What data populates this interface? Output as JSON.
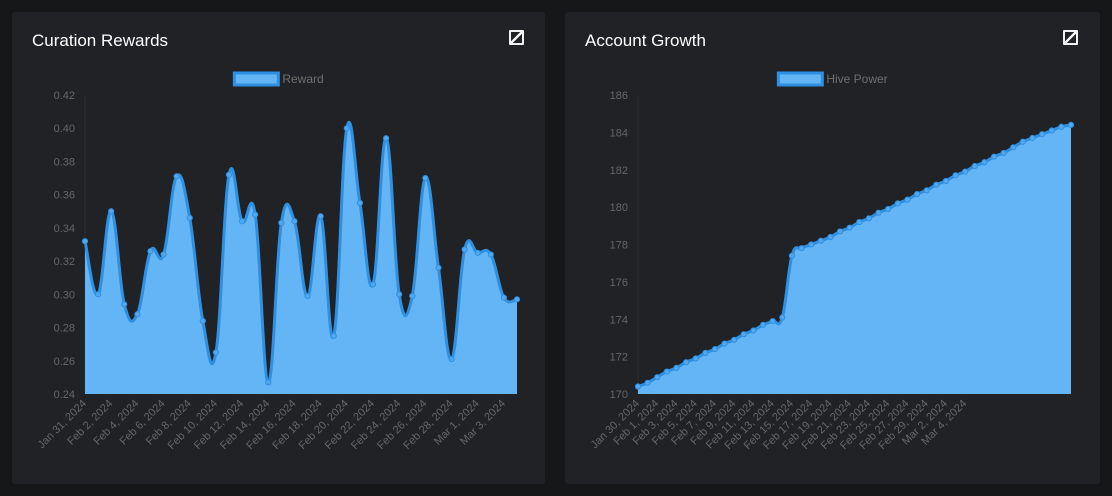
{
  "panels": [
    {
      "title": "Curation Rewards",
      "expand_icon": "expand-icon"
    },
    {
      "title": "Account Growth",
      "expand_icon": "expand-icon"
    }
  ],
  "colors": {
    "fill": "#64b5f6",
    "line": "#2f8fe0",
    "point": "#52a8ef",
    "axis_text": "#666666",
    "legend_text": "#6f6f6f",
    "background": "#202225"
  },
  "chart_data": [
    {
      "type": "area",
      "legend": "Reward",
      "legend_position": "top",
      "grid": false,
      "ylim": [
        0.24,
        0.42
      ],
      "yticks": [
        "0.42",
        "0.40",
        "0.38",
        "0.36",
        "0.34",
        "0.32",
        "0.30",
        "0.28",
        "0.26",
        "0.24"
      ],
      "x_tick_labels": [
        "Jan 31, 2024",
        "Feb 2, 2024",
        "Feb 4, 2024",
        "Feb 6, 2024",
        "Feb 8, 2024",
        "Feb 10, 2024",
        "Feb 12, 2024",
        "Feb 14, 2024",
        "Feb 16, 2024",
        "Feb 18, 2024",
        "Feb 20, 2024",
        "Feb 22, 2024",
        "Feb 24, 2024",
        "Feb 26, 2024",
        "Feb 28, 2024",
        "Mar 1, 2024",
        "Mar 3, 2024"
      ],
      "values": [
        0.332,
        0.3,
        0.35,
        0.294,
        0.288,
        0.326,
        0.324,
        0.371,
        0.346,
        0.284,
        0.265,
        0.372,
        0.344,
        0.348,
        0.247,
        0.343,
        0.344,
        0.299,
        0.347,
        0.275,
        0.4,
        0.355,
        0.306,
        0.394,
        0.3,
        0.299,
        0.37,
        0.316,
        0.261,
        0.327,
        0.325,
        0.324,
        0.298,
        0.297
      ]
    },
    {
      "type": "area",
      "legend": "Hive Power",
      "legend_position": "top",
      "grid": false,
      "ylim": [
        170,
        186
      ],
      "yticks": [
        "186",
        "184",
        "182",
        "180",
        "178",
        "176",
        "174",
        "172",
        "170"
      ],
      "x_tick_labels": [
        "Jan 30, 2024",
        "Feb 1, 2024",
        "Feb 3, 2024",
        "Feb 5, 2024",
        "Feb 7, 2024",
        "Feb 9, 2024",
        "Feb 11, 2024",
        "Feb 13, 2024",
        "Feb 15, 2024",
        "Feb 17, 2024",
        "Feb 19, 2024",
        "Feb 21, 2024",
        "Feb 23, 2024",
        "Feb 25, 2024",
        "Feb 27, 2024",
        "Feb 29, 2024",
        "Mar 2, 2024",
        "Mar 4, 2024"
      ],
      "values": [
        170.4,
        170.6,
        170.9,
        171.2,
        171.4,
        171.7,
        171.9,
        172.2,
        172.4,
        172.7,
        172.9,
        173.2,
        173.4,
        173.7,
        173.9,
        174.1,
        177.4,
        177.8,
        178.0,
        178.2,
        178.4,
        178.7,
        178.9,
        179.2,
        179.4,
        179.7,
        179.9,
        180.2,
        180.4,
        180.7,
        180.9,
        181.2,
        181.4,
        181.7,
        181.9,
        182.2,
        182.4,
        182.7,
        182.9,
        183.2,
        183.5,
        183.7,
        183.9,
        184.1,
        184.3,
        184.4
      ]
    }
  ]
}
